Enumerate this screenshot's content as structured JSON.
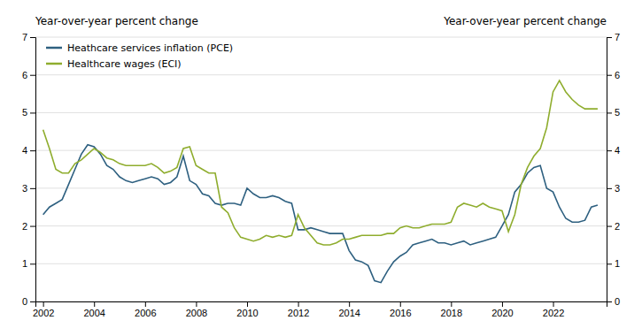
{
  "chart_data": {
    "type": "line",
    "ylabel": "Year-over-year percent change",
    "y2label": "Year-over-year percent change",
    "x": [
      2002.0,
      2002.25,
      2002.5,
      2002.75,
      2003.0,
      2003.25,
      2003.5,
      2003.75,
      2004.0,
      2004.25,
      2004.5,
      2004.75,
      2005.0,
      2005.25,
      2005.5,
      2005.75,
      2006.0,
      2006.25,
      2006.5,
      2006.75,
      2007.0,
      2007.25,
      2007.5,
      2007.75,
      2008.0,
      2008.25,
      2008.5,
      2008.75,
      2009.0,
      2009.25,
      2009.5,
      2009.75,
      2010.0,
      2010.25,
      2010.5,
      2010.75,
      2011.0,
      2011.25,
      2011.5,
      2011.75,
      2012.0,
      2012.25,
      2012.5,
      2012.75,
      2013.0,
      2013.25,
      2013.5,
      2013.75,
      2014.0,
      2014.25,
      2014.5,
      2014.75,
      2015.0,
      2015.25,
      2015.5,
      2015.75,
      2016.0,
      2016.25,
      2016.5,
      2016.75,
      2017.0,
      2017.25,
      2017.5,
      2017.75,
      2018.0,
      2018.25,
      2018.5,
      2018.75,
      2019.0,
      2019.25,
      2019.5,
      2019.75,
      2020.0,
      2020.25,
      2020.5,
      2020.75,
      2021.0,
      2021.25,
      2021.5,
      2021.75,
      2022.0,
      2022.25,
      2022.5,
      2022.75,
      2023.0,
      2023.25,
      2023.5,
      2023.75
    ],
    "series": [
      {
        "name": "Heathcare services inflation (PCE)",
        "color": "#2e6080",
        "values": [
          2.3,
          2.5,
          2.6,
          2.7,
          3.1,
          3.5,
          3.9,
          4.15,
          4.1,
          3.9,
          3.6,
          3.5,
          3.3,
          3.2,
          3.15,
          3.2,
          3.25,
          3.3,
          3.25,
          3.1,
          3.15,
          3.3,
          3.85,
          3.2,
          3.1,
          2.85,
          2.8,
          2.6,
          2.55,
          2.6,
          2.6,
          2.55,
          3.0,
          2.85,
          2.75,
          2.75,
          2.8,
          2.75,
          2.65,
          2.6,
          1.9,
          1.9,
          1.95,
          1.9,
          1.85,
          1.8,
          1.8,
          1.8,
          1.35,
          1.1,
          1.05,
          0.95,
          0.55,
          0.5,
          0.8,
          1.05,
          1.2,
          1.3,
          1.5,
          1.55,
          1.6,
          1.65,
          1.55,
          1.55,
          1.5,
          1.55,
          1.6,
          1.5,
          1.55,
          1.6,
          1.65,
          1.7,
          2.0,
          2.3,
          2.9,
          3.1,
          3.4,
          3.55,
          3.6,
          3.0,
          2.9,
          2.5,
          2.2,
          2.1,
          2.1,
          2.15,
          2.5,
          2.55
        ]
      },
      {
        "name": "Healthcare wages (ECI)",
        "color": "#8fad2e",
        "values": [
          4.55,
          4.05,
          3.5,
          3.4,
          3.4,
          3.65,
          3.75,
          3.9,
          4.05,
          3.95,
          3.8,
          3.75,
          3.65,
          3.6,
          3.6,
          3.6,
          3.6,
          3.65,
          3.55,
          3.4,
          3.45,
          3.55,
          4.05,
          4.1,
          3.6,
          3.5,
          3.4,
          3.4,
          2.5,
          2.35,
          1.95,
          1.7,
          1.65,
          1.6,
          1.65,
          1.75,
          1.7,
          1.75,
          1.7,
          1.75,
          2.3,
          1.95,
          1.75,
          1.55,
          1.5,
          1.5,
          1.55,
          1.65,
          1.65,
          1.7,
          1.75,
          1.75,
          1.75,
          1.75,
          1.8,
          1.8,
          1.95,
          2.0,
          1.95,
          1.95,
          2.0,
          2.05,
          2.05,
          2.05,
          2.1,
          2.5,
          2.6,
          2.55,
          2.5,
          2.6,
          2.5,
          2.45,
          2.4,
          1.85,
          2.3,
          3.1,
          3.55,
          3.85,
          4.05,
          4.6,
          5.55,
          5.85,
          5.55,
          5.35,
          5.2,
          5.1,
          5.1,
          5.1
        ]
      }
    ],
    "xlim": [
      2001.7,
      2024.1
    ],
    "xticks": [
      2002,
      2004,
      2006,
      2008,
      2010,
      2012,
      2014,
      2016,
      2018,
      2020,
      2022
    ],
    "ylim": [
      0,
      7
    ],
    "yticks": [
      0,
      1,
      2,
      3,
      4,
      5,
      6,
      7
    ],
    "y2lim": [
      0,
      7
    ],
    "y2ticks": [
      0,
      1,
      2,
      3,
      4,
      5,
      6,
      7
    ],
    "grid": true,
    "legend": "upper left"
  }
}
